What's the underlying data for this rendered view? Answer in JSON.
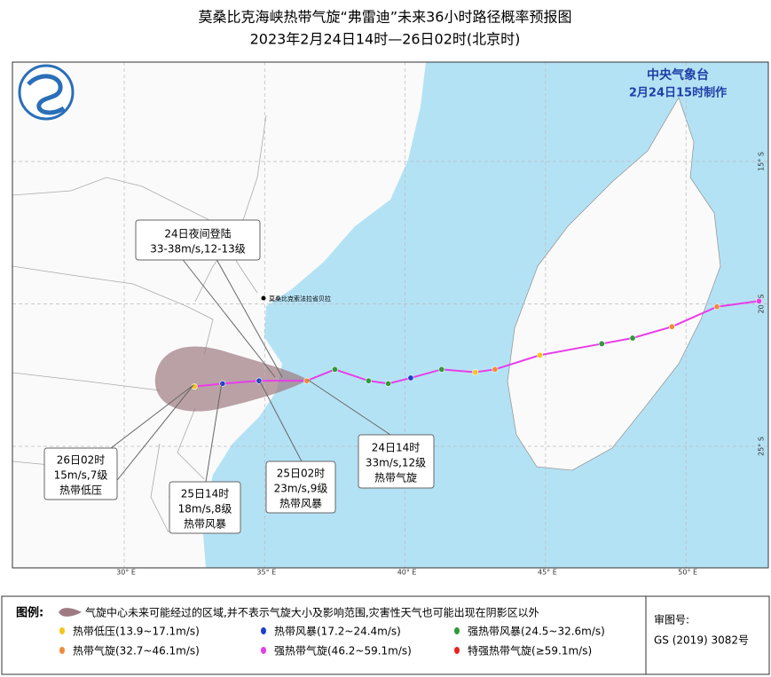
{
  "header": {
    "title": "莫桑比克海峡热带气旋“弗雷迪”未来36小时路径概率预报图",
    "subtitle": "2023年2月24日14时—26日02时(北京时)",
    "agency": "中央气象台",
    "issued": "2月24日15时制作"
  },
  "map": {
    "lon_ticks": [
      {
        "value": 30,
        "label": "30° E"
      },
      {
        "value": 35,
        "label": "35° E"
      },
      {
        "value": 40,
        "label": "40° E"
      },
      {
        "value": 45,
        "label": "45° E"
      },
      {
        "value": 50,
        "label": "50° E"
      }
    ],
    "lat_ticks": [
      {
        "value": 15,
        "label": "15° S"
      },
      {
        "value": 20,
        "label": "20° S"
      },
      {
        "value": 25,
        "label": "25° S"
      }
    ],
    "city": "莫桑比克索法拉省贝拉",
    "track_color": "#e83de8",
    "past_track": [
      {
        "lon": 52.6,
        "lat": 19.9,
        "color": "#e83de8"
      },
      {
        "lon": 51.1,
        "lat": 20.1,
        "color": "#f08a3a"
      },
      {
        "lon": 49.5,
        "lat": 20.8,
        "color": "#f08a3a"
      },
      {
        "lon": 48.1,
        "lat": 21.2,
        "color": "#2e9a3a"
      },
      {
        "lon": 47.0,
        "lat": 21.4,
        "color": "#2e9a3a"
      },
      {
        "lon": 44.8,
        "lat": 21.8,
        "color": "#f5c518"
      },
      {
        "lon": 43.2,
        "lat": 22.3,
        "color": "#f08a3a"
      },
      {
        "lon": 42.5,
        "lat": 22.4,
        "color": "#f5c518"
      },
      {
        "lon": 41.3,
        "lat": 22.3,
        "color": "#2e9a3a"
      },
      {
        "lon": 40.2,
        "lat": 22.6,
        "color": "#1f3fcf"
      },
      {
        "lon": 39.4,
        "lat": 22.8,
        "color": "#2e9a3a"
      },
      {
        "lon": 38.7,
        "lat": 22.7,
        "color": "#2e9a3a"
      },
      {
        "lon": 37.5,
        "lat": 22.3,
        "color": "#2e9a3a"
      },
      {
        "lon": 36.5,
        "lat": 22.7,
        "color": "#f08a3a"
      }
    ],
    "forecast_track": [
      {
        "lon": 34.8,
        "lat": 22.7,
        "color": "#1f3fcf"
      },
      {
        "lon": 33.5,
        "lat": 22.8,
        "color": "#1f3fcf"
      },
      {
        "lon": 32.5,
        "lat": 22.9,
        "color": "#f5c518"
      }
    ],
    "annotations": [
      {
        "lines": [
          "24日夜间登陆",
          "33-38m/s,12-13级"
        ]
      },
      {
        "lines": [
          "24日14时",
          "33m/s,12级",
          "热带气旋"
        ]
      },
      {
        "lines": [
          "25日02时",
          "23m/s,9级",
          "热带风暴"
        ]
      },
      {
        "lines": [
          "25日14时",
          "18m/s,8级",
          "热带风暴"
        ]
      },
      {
        "lines": [
          "26日02时",
          "15m/s,7级",
          "热带低压"
        ]
      }
    ]
  },
  "legend": {
    "title": "图例:",
    "cone_text": "气旋中心未来可能经过的区域,并不表示气旋大小及影响范围,灾害性天气也可能出现在阴影区以外",
    "items": [
      {
        "label": "热带低压(13.9~17.1m/s)",
        "color": "#f5c518"
      },
      {
        "label": "热带风暴(17.2~24.4m/s)",
        "color": "#1f3fcf"
      },
      {
        "label": "强热带风暴(24.5~32.6m/s)",
        "color": "#2e9a3a"
      },
      {
        "label": "热带气旋(32.7~46.1m/s)",
        "color": "#f08a3a"
      },
      {
        "label": "强热带气旋(46.2~59.1m/s)",
        "color": "#e83de8"
      },
      {
        "label": "特强热带气旋(≥59.1m/s)",
        "color": "#e8231b"
      }
    ],
    "review_label": "审图号:",
    "review_number": "GS (2019) 3082号"
  }
}
